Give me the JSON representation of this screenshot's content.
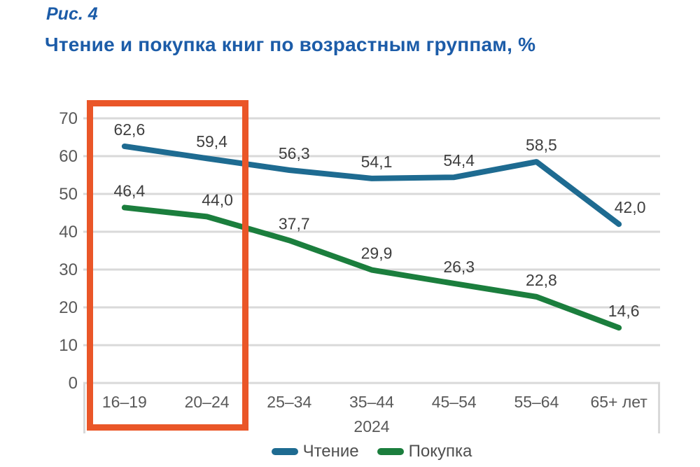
{
  "figure": {
    "number": "Рис. 4",
    "title": "Чтение и покупка книг по возрастным группам, %"
  },
  "chart_data": {
    "type": "line",
    "categories": [
      "16–19",
      "20–24",
      "25–34",
      "35–44",
      "45–54",
      "55–64",
      "65+ лет"
    ],
    "x_axis_group_label": "2024",
    "series": [
      {
        "name": "Чтение",
        "color": "#1e6b91",
        "values": [
          62.6,
          59.4,
          56.3,
          54.1,
          54.4,
          58.5,
          42.0
        ],
        "labels": [
          "62,6",
          "59,4",
          "56,3",
          "54,1",
          "54,4",
          "58,5",
          "42,0"
        ]
      },
      {
        "name": "Покупка",
        "color": "#1b7e3d",
        "values": [
          46.4,
          44.0,
          37.7,
          29.9,
          26.3,
          22.8,
          14.6
        ],
        "labels": [
          "46,4",
          "44,0",
          "37,7",
          "29,9",
          "26,3",
          "22,8",
          "14,6"
        ]
      }
    ],
    "ylim": [
      0,
      70
    ],
    "yticks": [
      0,
      10,
      20,
      30,
      40,
      50,
      60,
      70
    ],
    "grid": true,
    "legend_position": "bottom",
    "highlight": {
      "categories": [
        "16–19",
        "20–24"
      ],
      "color": "#ea5628"
    }
  },
  "colors": {
    "title_blue": "#1c5ca8",
    "reading_line": "#1e6b91",
    "buying_line": "#1b7e3d",
    "highlight_orange": "#ea5628",
    "gridline": "#d9d9d9",
    "axis_text": "#595959",
    "data_label_text": "#3f3f3f"
  }
}
